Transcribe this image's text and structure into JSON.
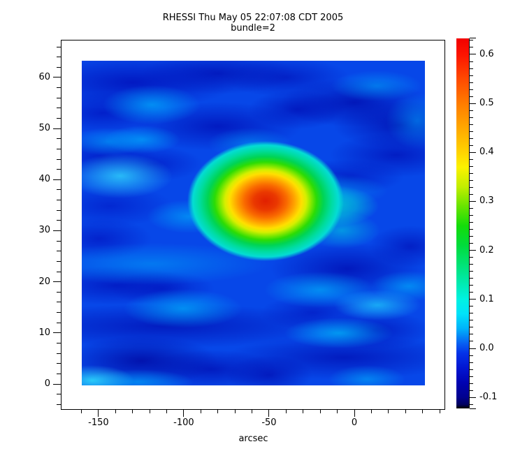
{
  "title": {
    "line1": "RHESSI Thu May 05 22:07:08 CDT 2005",
    "line2": "bundle=2"
  },
  "x_axis": {
    "label": "arcsec",
    "majors": [
      {
        "v": -150,
        "t": "-150"
      },
      {
        "v": -100,
        "t": "-100"
      },
      {
        "v": -50,
        "t": "-50"
      },
      {
        "v": 0,
        "t": "0"
      }
    ],
    "minor": {
      "from": -160,
      "to": 50,
      "step": 10
    }
  },
  "y_axis": {
    "majors": [
      {
        "v": 0,
        "t": "0"
      },
      {
        "v": 10,
        "t": "10"
      },
      {
        "v": 20,
        "t": "20"
      },
      {
        "v": 30,
        "t": "30"
      },
      {
        "v": 40,
        "t": "40"
      },
      {
        "v": 50,
        "t": "50"
      },
      {
        "v": 60,
        "t": "60"
      }
    ],
    "minor": {
      "from": -4,
      "to": 66,
      "step": 2
    }
  },
  "colorbar_axis": {
    "majors": [
      {
        "v": 0.6,
        "t": "0.6"
      },
      {
        "v": 0.5,
        "t": "0.5"
      },
      {
        "v": 0.4,
        "t": "0.4"
      },
      {
        "v": 0.3,
        "t": "0.3"
      },
      {
        "v": 0.2,
        "t": "0.2"
      },
      {
        "v": 0.1,
        "t": "0.1"
      },
      {
        "v": 0.0,
        "t": "0.0"
      },
      {
        "v": -0.1,
        "t": "-0.1"
      }
    ],
    "minor": {
      "from": -0.1142857,
      "to": 0.6285714,
      "step": 0.0142857
    }
  },
  "chart_data": {
    "type": "heatmap",
    "title": "RHESSI Thu May 05 22:07:08 CDT 2005",
    "subtitle": "bundle=2",
    "xlabel": "arcsec",
    "x_range_arcsec": [
      -160,
      42
    ],
    "y_range": [
      -0.3,
      63.4
    ],
    "x_ticks": [
      -150,
      -100,
      -50,
      0
    ],
    "y_ticks": [
      0,
      10,
      20,
      30,
      40,
      50,
      60
    ],
    "grid": false,
    "colorbar": {
      "position": "right",
      "bar_min": -0.123,
      "bar_max": 0.633,
      "ticks": [
        -0.1,
        0.0,
        0.1,
        0.2,
        0.3,
        0.4,
        0.5,
        0.6
      ],
      "colormap": [
        {
          "v": 0.633,
          "color": "#f20000"
        },
        {
          "v": 0.6,
          "color": "#fc1400"
        },
        {
          "v": 0.55,
          "color": "#ff4a00"
        },
        {
          "v": 0.5,
          "color": "#ff7c00"
        },
        {
          "v": 0.45,
          "color": "#ffa800"
        },
        {
          "v": 0.4,
          "color": "#ffd400"
        },
        {
          "v": 0.37,
          "color": "#fcf200"
        },
        {
          "v": 0.33,
          "color": "#c2ee00"
        },
        {
          "v": 0.29,
          "color": "#68e400"
        },
        {
          "v": 0.25,
          "color": "#14dc0a"
        },
        {
          "v": 0.21,
          "color": "#00dc3c"
        },
        {
          "v": 0.17,
          "color": "#00e377"
        },
        {
          "v": 0.13,
          "color": "#00ebb4"
        },
        {
          "v": 0.1,
          "color": "#00f2e2"
        },
        {
          "v": 0.07,
          "color": "#00e2fa"
        },
        {
          "v": 0.04,
          "color": "#00b2fa"
        },
        {
          "v": 0.01,
          "color": "#0760f2"
        },
        {
          "v": -0.01,
          "color": "#0433e8"
        },
        {
          "v": -0.04,
          "color": "#0216d2"
        },
        {
          "v": -0.07,
          "color": "#0103b2"
        },
        {
          "v": -0.1,
          "color": "#01018f"
        },
        {
          "v": -0.115,
          "color": "#000060"
        },
        {
          "v": -0.123,
          "color": "#000000"
        }
      ]
    },
    "source": {
      "description": "compact bright source with red core and concentric yellow/green/aqua halo",
      "x_arcsec": -52,
      "y": 36,
      "peak_value": 0.63,
      "core_extent_x_arcsec": [
        -63,
        -39
      ],
      "core_extent_y": [
        32,
        39
      ],
      "tail": {
        "direction": "east",
        "x_arcsec": -18,
        "y": 34,
        "value": 0.12
      }
    },
    "background": {
      "base_value": 0.0,
      "ripple_range": [
        -0.1,
        0.1
      ],
      "description": "blue field with horizontal dark-blue sidelobe bands and light-cyan ripple patches"
    }
  },
  "colors": {
    "page_background": "#ffffff",
    "frame": "#000000",
    "text": "#000000",
    "heatmap_base_blue": "#0747e8",
    "dark_ripple": "#000eb9",
    "light_ripple": "#00a8fa",
    "hotspot_core": "#e12000",
    "colorbar_top": "#f20000",
    "colorbar_bottom": "#000000"
  }
}
